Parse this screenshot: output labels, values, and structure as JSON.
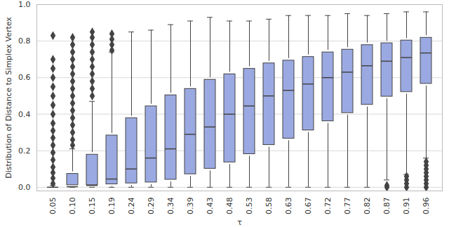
{
  "chart_data": {
    "type": "box",
    "x_label": "τ",
    "y_label": "Distribution of Distance to Simplex Vertex",
    "categories": [
      "0.05",
      "0.10",
      "0.15",
      "0.19",
      "0.24",
      "0.29",
      "0.34",
      "0.39",
      "0.43",
      "0.48",
      "0.53",
      "0.58",
      "0.63",
      "0.67",
      "0.72",
      "0.77",
      "0.82",
      "0.87",
      "0.91",
      "0.96"
    ],
    "boxes": [
      {
        "min": 0,
        "q1": 0,
        "median": 0,
        "q3": 0.005,
        "max": 0.01,
        "outliers": [
          0.02,
          0.05,
          0.08,
          0.11,
          0.15,
          0.19,
          0.23,
          0.27,
          0.31,
          0.35,
          0.4,
          0.45,
          0.5,
          0.55,
          0.6,
          0.65,
          0.7,
          0.83
        ]
      },
      {
        "min": 0,
        "q1": 0,
        "median": 0.003,
        "q3": 0.085,
        "max": 0.21,
        "outliers": [
          0.23,
          0.26,
          0.3,
          0.34,
          0.38,
          0.42,
          0.46,
          0.5,
          0.54,
          0.58,
          0.62,
          0.66,
          0.7,
          0.74,
          0.78,
          0.82
        ]
      },
      {
        "min": 0,
        "q1": 0,
        "median": 0.01,
        "q3": 0.19,
        "max": 0.47,
        "outliers": [
          0.5,
          0.54,
          0.58,
          0.62,
          0.66,
          0.7,
          0.74,
          0.78,
          0.82,
          0.85
        ]
      },
      {
        "min": 0,
        "q1": 0.005,
        "median": 0.045,
        "q3": 0.295,
        "max": 0.74,
        "outliers": [
          0.75,
          0.78,
          0.81,
          0.84
        ]
      },
      {
        "min": 0,
        "q1": 0.01,
        "median": 0.1,
        "q3": 0.39,
        "max": 0.85,
        "outliers": []
      },
      {
        "min": 0,
        "q1": 0.015,
        "median": 0.16,
        "q3": 0.455,
        "max": 0.86,
        "outliers": []
      },
      {
        "min": 0,
        "q1": 0.03,
        "median": 0.21,
        "q3": 0.515,
        "max": 0.89,
        "outliers": []
      },
      {
        "min": 0,
        "q1": 0.06,
        "median": 0.29,
        "q3": 0.55,
        "max": 0.91,
        "outliers": []
      },
      {
        "min": 0,
        "q1": 0.09,
        "median": 0.33,
        "q3": 0.6,
        "max": 0.93,
        "outliers": []
      },
      {
        "min": 0,
        "q1": 0.125,
        "median": 0.4,
        "q3": 0.63,
        "max": 0.91,
        "outliers": []
      },
      {
        "min": 0,
        "q1": 0.17,
        "median": 0.445,
        "q3": 0.66,
        "max": 0.91,
        "outliers": []
      },
      {
        "min": 0,
        "q1": 0.22,
        "median": 0.5,
        "q3": 0.69,
        "max": 0.92,
        "outliers": []
      },
      {
        "min": 0,
        "q1": 0.255,
        "median": 0.53,
        "q3": 0.705,
        "max": 0.94,
        "outliers": []
      },
      {
        "min": 0,
        "q1": 0.3,
        "median": 0.565,
        "q3": 0.725,
        "max": 0.94,
        "outliers": []
      },
      {
        "min": 0,
        "q1": 0.35,
        "median": 0.6,
        "q3": 0.75,
        "max": 0.94,
        "outliers": []
      },
      {
        "min": 0,
        "q1": 0.395,
        "median": 0.63,
        "q3": 0.765,
        "max": 0.95,
        "outliers": []
      },
      {
        "min": 0,
        "q1": 0.44,
        "median": 0.665,
        "q3": 0.79,
        "max": 0.94,
        "outliers": []
      },
      {
        "min": 0.04,
        "q1": 0.485,
        "median": 0.69,
        "q3": 0.8,
        "max": 0.95,
        "outliers": [
          0.0,
          0.01
        ]
      },
      {
        "min": 0.07,
        "q1": 0.51,
        "median": 0.71,
        "q3": 0.815,
        "max": 0.96,
        "outliers": [
          0.0,
          0.02,
          0.04,
          0.06
        ]
      },
      {
        "min": 0.16,
        "q1": 0.555,
        "median": 0.735,
        "q3": 0.83,
        "max": 0.96,
        "outliers": [
          0.0,
          0.02,
          0.04,
          0.06,
          0.08,
          0.1,
          0.12,
          0.14
        ]
      }
    ],
    "color": "#9ba9e2",
    "ylim": [
      -0.02,
      1.0
    ],
    "yticks": [
      {
        "value": 0,
        "label": "0.0"
      },
      {
        "value": 0.2,
        "label": "0.2"
      },
      {
        "value": 0.4,
        "label": "0.4"
      },
      {
        "value": 0.6,
        "label": "0.6"
      },
      {
        "value": 0.8,
        "label": "0.8"
      },
      {
        "value": 1.0,
        "label": "1.0"
      }
    ],
    "grid": true
  }
}
